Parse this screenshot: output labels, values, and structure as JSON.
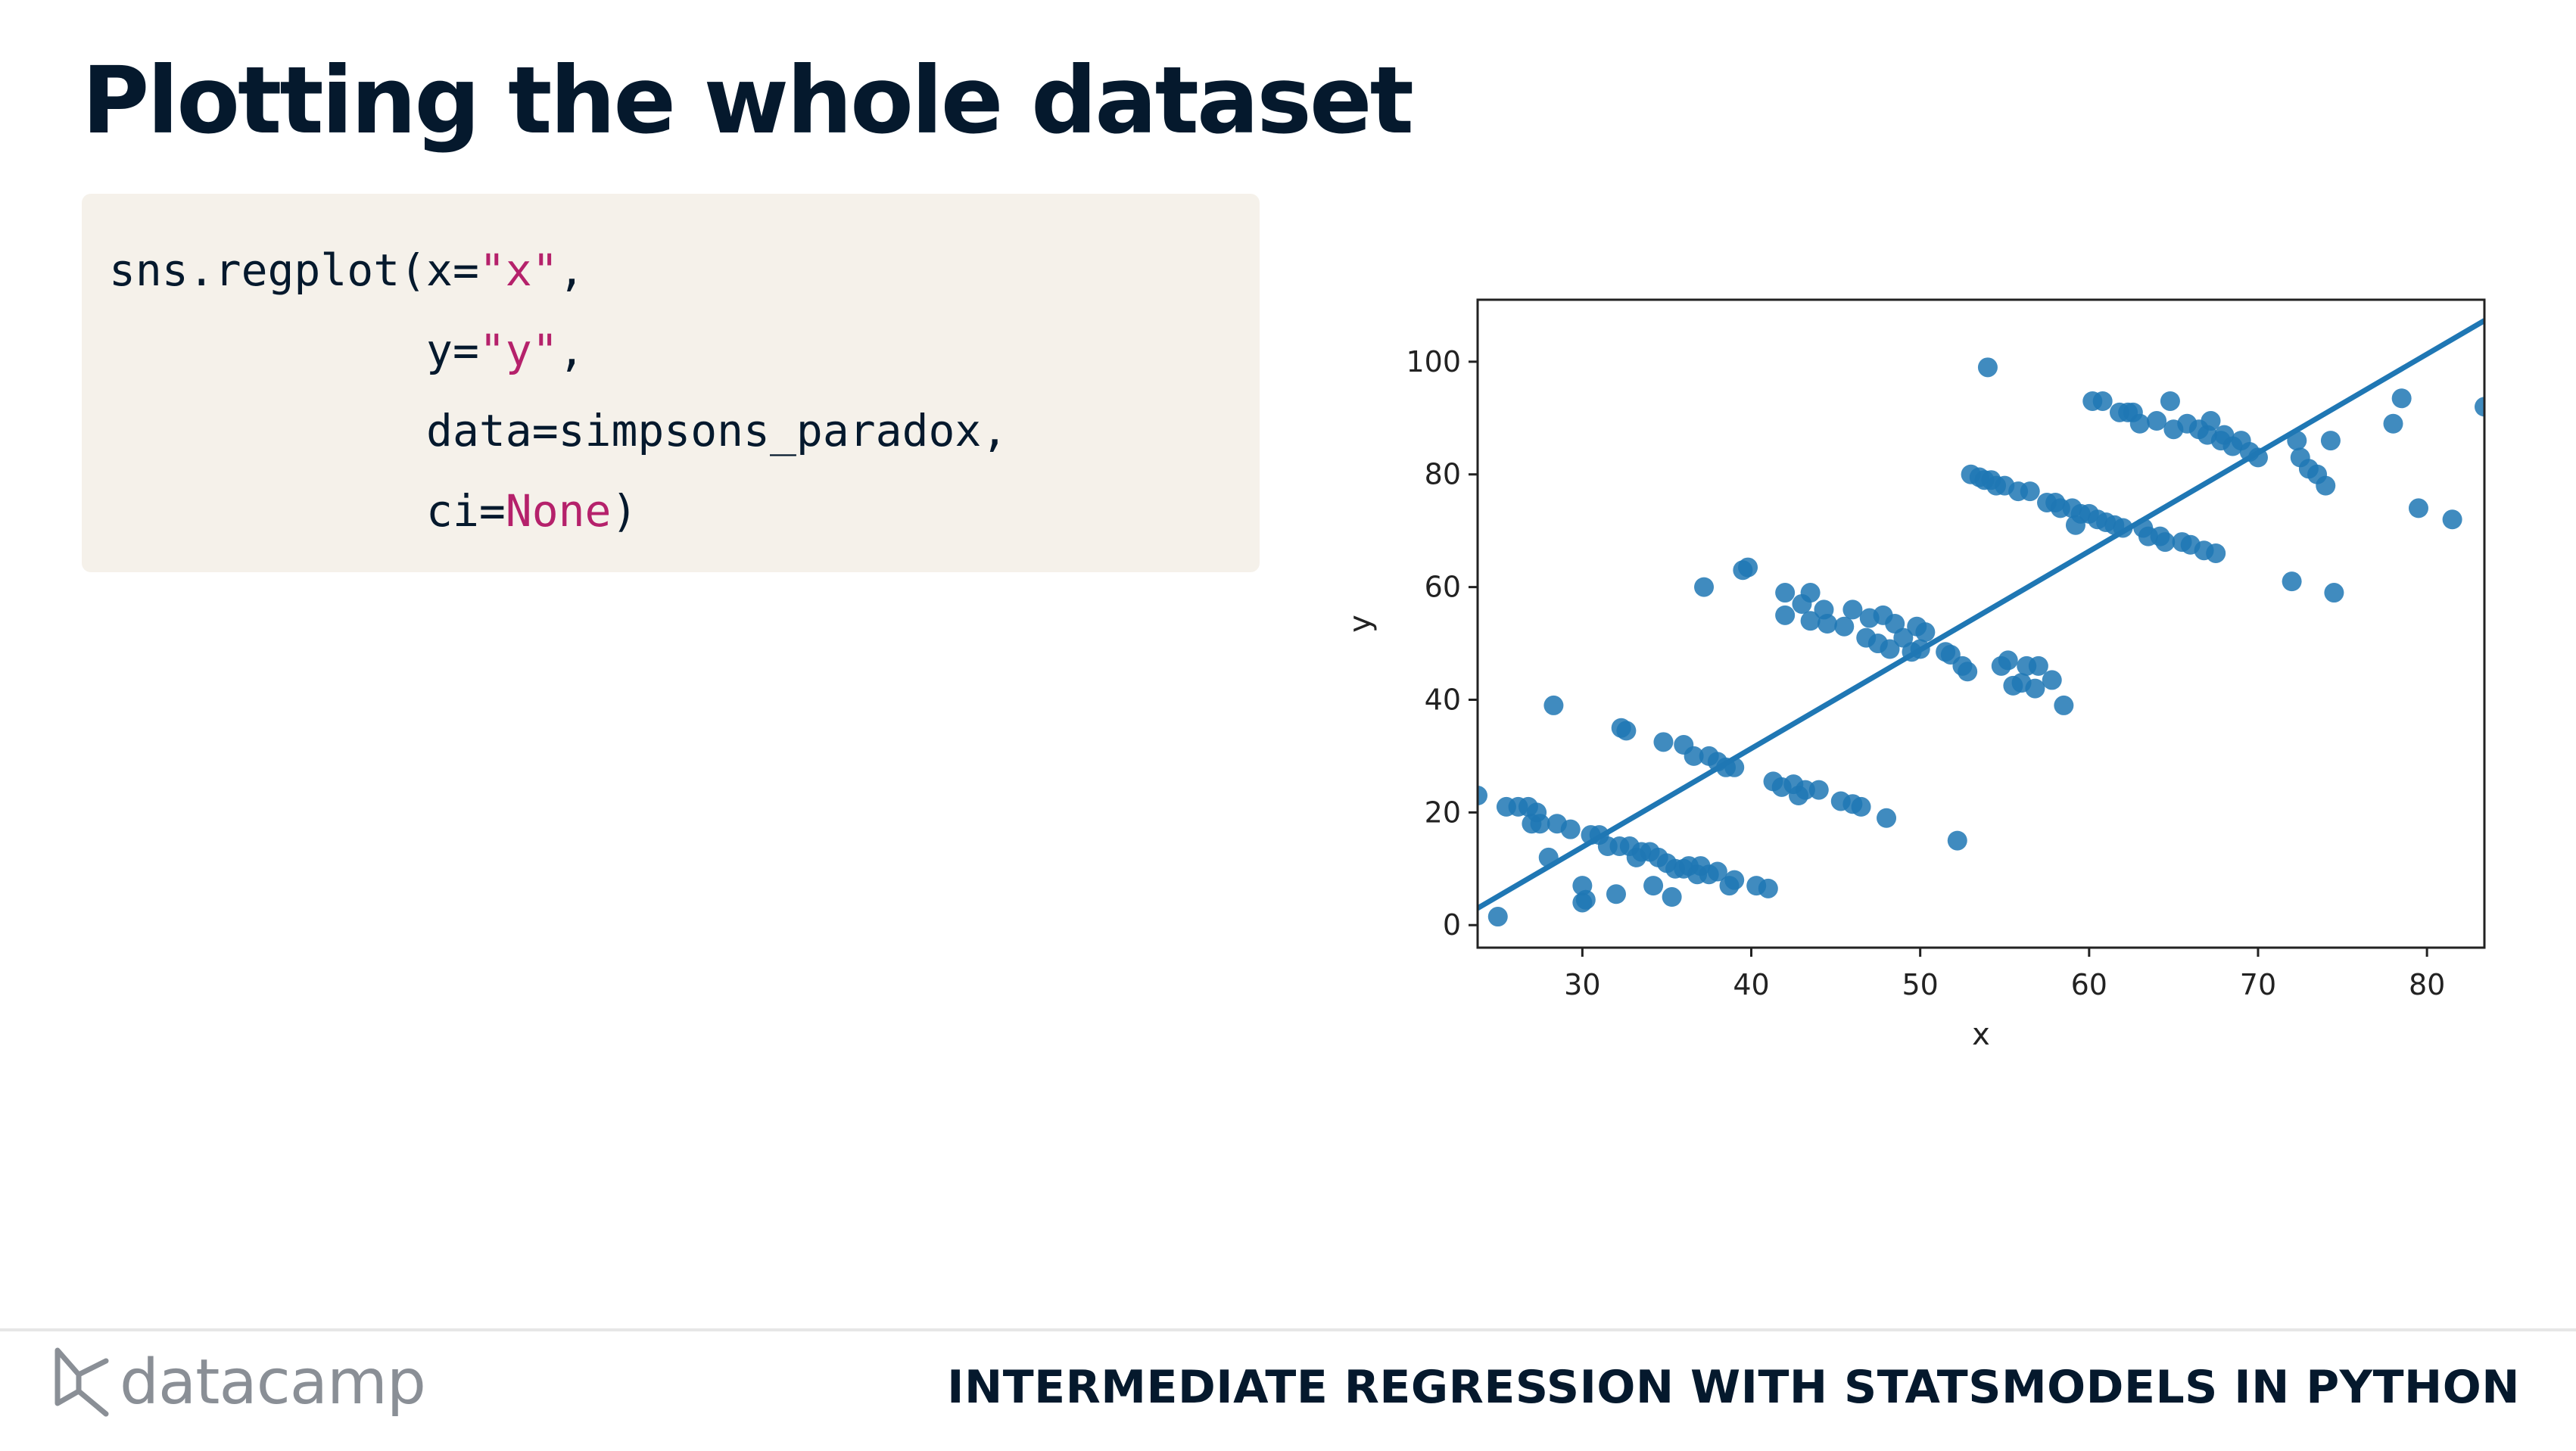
{
  "slide": {
    "title": "Plotting the whole dataset",
    "course_title": "INTERMEDIATE REGRESSION WITH STATSMODELS IN PYTHON",
    "brand": "datacamp"
  },
  "code": {
    "line1": {
      "prefix": "sns.regplot(x=",
      "str": "\"x\"",
      "suffix": ","
    },
    "line2": {
      "indent": "            ",
      "prefix": "y=",
      "str": "\"y\"",
      "suffix": ","
    },
    "line3": {
      "indent": "            ",
      "text": "data=simpsons_paradox,"
    },
    "line4": {
      "indent": "            ",
      "prefix": "ci=",
      "kw": "None",
      "suffix": ")"
    }
  },
  "colors": {
    "point": "#1f77b4",
    "line": "#1f77b4",
    "code_bg": "#f5f1ea",
    "code_string": "#b5216b",
    "title": "#05192d"
  },
  "chart_data": {
    "type": "scatter",
    "title": "",
    "xlabel": "x",
    "ylabel": "y",
    "xlim": [
      23.8,
      83.4
    ],
    "ylim": [
      -4,
      111
    ],
    "xticks": [
      30,
      40,
      50,
      60,
      70,
      80
    ],
    "yticks": [
      0,
      20,
      40,
      60,
      80,
      100
    ],
    "grid": false,
    "legend": "none",
    "regression_line": {
      "x": [
        23.8,
        83.4
      ],
      "y": [
        3.0,
        107.3
      ]
    },
    "points": [
      [
        23.8,
        23
      ],
      [
        25,
        1.5
      ],
      [
        25.5,
        21
      ],
      [
        26.2,
        21
      ],
      [
        26.8,
        21
      ],
      [
        27,
        18
      ],
      [
        27.3,
        20
      ],
      [
        27.5,
        18
      ],
      [
        28,
        12
      ],
      [
        28.3,
        39
      ],
      [
        28.5,
        18
      ],
      [
        29.3,
        17
      ],
      [
        30,
        4
      ],
      [
        30,
        7
      ],
      [
        30.2,
        4.5
      ],
      [
        30.5,
        16
      ],
      [
        31,
        16
      ],
      [
        31.5,
        14
      ],
      [
        32,
        5.5
      ],
      [
        32.2,
        14
      ],
      [
        32.3,
        35
      ],
      [
        32.6,
        34.5
      ],
      [
        32.8,
        14
      ],
      [
        33.2,
        12
      ],
      [
        33.5,
        13
      ],
      [
        34,
        13
      ],
      [
        34.2,
        7
      ],
      [
        34.5,
        12
      ],
      [
        34.8,
        32.5
      ],
      [
        35,
        11
      ],
      [
        35.3,
        5
      ],
      [
        35.5,
        10
      ],
      [
        36,
        32
      ],
      [
        36,
        10
      ],
      [
        36.3,
        10.5
      ],
      [
        36.6,
        30
      ],
      [
        36.8,
        9
      ],
      [
        37,
        10.5
      ],
      [
        37.2,
        60
      ],
      [
        37.5,
        30
      ],
      [
        37.5,
        9
      ],
      [
        38,
        29
      ],
      [
        38,
        9.5
      ],
      [
        38.5,
        28
      ],
      [
        38.7,
        7
      ],
      [
        39,
        28
      ],
      [
        39,
        8
      ],
      [
        39.5,
        63
      ],
      [
        39.8,
        63.5
      ],
      [
        40.3,
        7
      ],
      [
        41,
        6.5
      ],
      [
        41.3,
        25.5
      ],
      [
        41.8,
        24.5
      ],
      [
        42,
        59
      ],
      [
        42,
        55
      ],
      [
        42.5,
        25
      ],
      [
        42.8,
        23
      ],
      [
        43,
        57
      ],
      [
        43.2,
        24
      ],
      [
        43.5,
        59
      ],
      [
        43.5,
        54
      ],
      [
        44,
        24
      ],
      [
        44.3,
        56
      ],
      [
        44.5,
        53.5
      ],
      [
        45.3,
        22
      ],
      [
        45.5,
        53
      ],
      [
        46,
        21.5
      ],
      [
        46,
        56
      ],
      [
        46.5,
        21
      ],
      [
        46.8,
        51
      ],
      [
        47,
        54.5
      ],
      [
        47.5,
        50
      ],
      [
        47.8,
        55
      ],
      [
        48,
        19
      ],
      [
        48.2,
        49
      ],
      [
        48.5,
        53.5
      ],
      [
        49,
        51
      ],
      [
        49.5,
        48.5
      ],
      [
        49.8,
        53
      ],
      [
        50,
        49
      ],
      [
        50.3,
        52
      ],
      [
        51.5,
        48.5
      ],
      [
        51.8,
        48
      ],
      [
        52.2,
        15
      ],
      [
        52.5,
        46
      ],
      [
        52.8,
        45
      ],
      [
        53,
        80
      ],
      [
        53.5,
        79.5
      ],
      [
        53.8,
        79
      ],
      [
        54,
        99
      ],
      [
        54.2,
        79
      ],
      [
        54.5,
        78
      ],
      [
        54.8,
        46
      ],
      [
        55,
        78
      ],
      [
        55.2,
        47
      ],
      [
        55.5,
        42.5
      ],
      [
        55.8,
        77
      ],
      [
        56,
        43
      ],
      [
        56.3,
        46
      ],
      [
        56.5,
        77
      ],
      [
        56.8,
        42
      ],
      [
        57,
        46
      ],
      [
        57.5,
        75
      ],
      [
        57.8,
        43.5
      ],
      [
        58,
        75
      ],
      [
        58.3,
        74
      ],
      [
        58.5,
        39
      ],
      [
        59,
        74
      ],
      [
        59.2,
        71
      ],
      [
        59.5,
        73
      ],
      [
        60,
        73
      ],
      [
        60.2,
        93
      ],
      [
        60.5,
        72
      ],
      [
        60.8,
        93
      ],
      [
        61,
        71.5
      ],
      [
        61.5,
        71
      ],
      [
        61.8,
        91
      ],
      [
        62,
        70.5
      ],
      [
        62.3,
        91
      ],
      [
        62.6,
        91
      ],
      [
        63,
        89
      ],
      [
        63.2,
        70.5
      ],
      [
        63.5,
        69
      ],
      [
        64,
        89.5
      ],
      [
        64.2,
        69
      ],
      [
        64.5,
        68
      ],
      [
        64.8,
        93
      ],
      [
        65,
        88
      ],
      [
        65.5,
        68
      ],
      [
        65.8,
        89
      ],
      [
        66,
        67.5
      ],
      [
        66.5,
        88
      ],
      [
        66.8,
        66.5
      ],
      [
        67,
        87
      ],
      [
        67.2,
        89.5
      ],
      [
        67.5,
        66
      ],
      [
        67.8,
        86
      ],
      [
        68,
        87
      ],
      [
        68.5,
        85
      ],
      [
        69,
        86
      ],
      [
        69.5,
        84
      ],
      [
        70,
        83
      ],
      [
        72,
        61
      ],
      [
        72.3,
        86
      ],
      [
        72.5,
        83
      ],
      [
        73,
        81
      ],
      [
        73.5,
        80
      ],
      [
        74,
        78
      ],
      [
        74.3,
        86
      ],
      [
        74.5,
        59
      ],
      [
        78,
        89
      ],
      [
        78.5,
        93.5
      ],
      [
        79.5,
        74
      ],
      [
        81.5,
        72
      ],
      [
        83.4,
        92
      ]
    ]
  }
}
